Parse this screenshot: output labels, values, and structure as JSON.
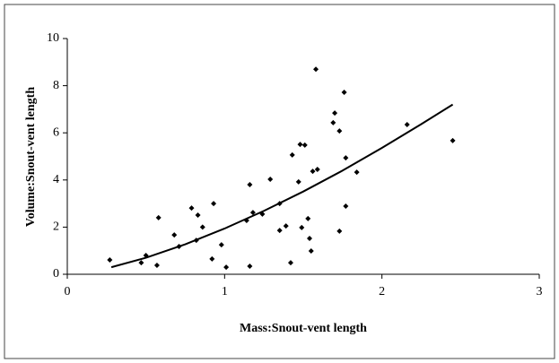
{
  "chart_data": {
    "type": "scatter",
    "xlabel": "Mass:Snout-vent length",
    "ylabel": "Volume:Snout-vent length",
    "xlim": [
      0,
      3
    ],
    "ylim": [
      0,
      10
    ],
    "xticks": [
      0,
      1,
      2,
      3
    ],
    "yticks": [
      0,
      2,
      4,
      6,
      8,
      10
    ],
    "series": [
      {
        "color": "#000000",
        "x": [
          0.27,
          0.47,
          0.5,
          0.57,
          0.58,
          0.68,
          0.71,
          0.79,
          0.82,
          0.83,
          0.86,
          0.93,
          0.92,
          0.98,
          1.01,
          1.14,
          1.16,
          1.16,
          1.18,
          1.24,
          1.29,
          1.35,
          1.35,
          1.39,
          1.42,
          1.43,
          1.47,
          1.48,
          1.51,
          1.49,
          1.53,
          1.54,
          1.55,
          1.56,
          1.59,
          1.58,
          1.69,
          1.7,
          1.73,
          1.73,
          1.76,
          1.77,
          1.77,
          1.84,
          2.16,
          2.45
        ],
        "values": [
          0.61,
          0.49,
          0.8,
          0.38,
          2.4,
          1.67,
          1.18,
          2.81,
          1.44,
          2.51,
          2.0,
          3.0,
          0.65,
          1.25,
          0.3,
          2.28,
          3.8,
          0.34,
          2.62,
          2.55,
          4.03,
          3.0,
          1.86,
          2.05,
          0.49,
          5.06,
          3.92,
          5.51,
          5.48,
          1.98,
          2.36,
          1.52,
          0.99,
          4.37,
          4.45,
          8.7,
          6.43,
          6.84,
          6.08,
          1.83,
          7.72,
          4.94,
          2.89,
          4.33,
          6.35,
          5.67
        ]
      },
      {
        "type": "line",
        "color": "#000000",
        "x": [
          0.28,
          0.5,
          0.75,
          1,
          1.25,
          1.5,
          1.75,
          2,
          2.25,
          2.45
        ],
        "values": [
          0.3,
          0.7,
          1.27,
          1.94,
          2.69,
          3.51,
          4.4,
          5.36,
          6.37,
          7.2
        ]
      }
    ]
  }
}
